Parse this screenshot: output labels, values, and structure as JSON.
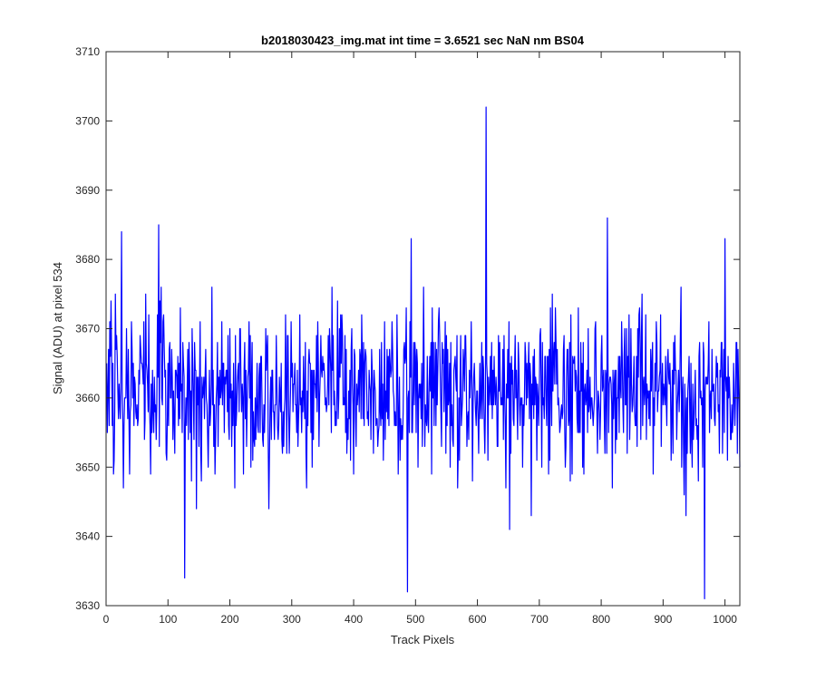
{
  "chart_data": {
    "type": "line",
    "title": "b2018030423_img.mat int time = 3.6521 sec  NaN nm BS04",
    "xlabel": "Track Pixels",
    "ylabel": "Signal (ADU) at pixel 534",
    "xlim": [
      0,
      1024
    ],
    "ylim": [
      3630,
      3710
    ],
    "xticks": [
      0,
      100,
      200,
      300,
      400,
      500,
      600,
      700,
      800,
      900,
      1000
    ],
    "yticks": [
      3630,
      3640,
      3650,
      3660,
      3670,
      3680,
      3690,
      3700,
      3710
    ],
    "xtick_labels": [
      "0",
      "100",
      "200",
      "300",
      "400",
      "500",
      "600",
      "700",
      "800",
      "900",
      "1000"
    ],
    "ytick_labels": [
      "3630",
      "3640",
      "3650",
      "3660",
      "3670",
      "3680",
      "3690",
      "3700",
      "3710"
    ],
    "grid": false,
    "box": true,
    "series": [
      {
        "color": "#0000ff",
        "x_start": 1,
        "x_step": 1,
        "n_points": 1024,
        "baseline": 3661,
        "noise_range": [
          3643,
          3676
        ],
        "notable_points": [
          {
            "x": 25,
            "y": 3684
          },
          {
            "x": 85,
            "y": 3685
          },
          {
            "x": 127,
            "y": 3634
          },
          {
            "x": 263,
            "y": 3644
          },
          {
            "x": 487,
            "y": 3632
          },
          {
            "x": 493,
            "y": 3683
          },
          {
            "x": 614,
            "y": 3702
          },
          {
            "x": 652,
            "y": 3641
          },
          {
            "x": 810,
            "y": 3686
          },
          {
            "x": 967,
            "y": 3631
          },
          {
            "x": 1000,
            "y": 3683
          }
        ]
      }
    ]
  }
}
